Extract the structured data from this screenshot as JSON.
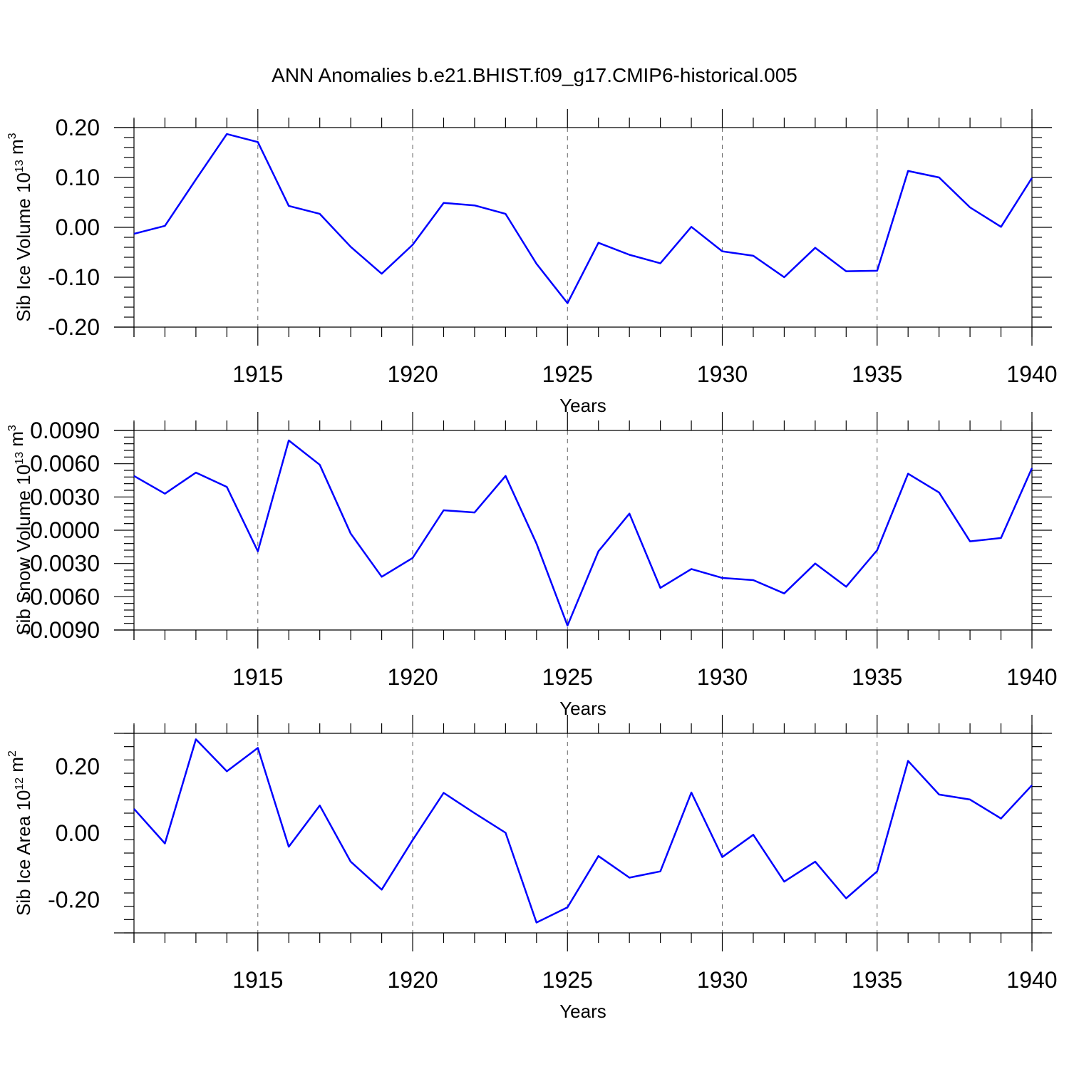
{
  "figure_title": "ANN Anomalies b.e21.BHIST.f09_g17.CMIP6-historical.005",
  "colors": {
    "line": "#0000ff",
    "axes": "#000000",
    "background": "#ffffff"
  },
  "chart_data": [
    {
      "type": "line",
      "name": "sib-ice-volume",
      "ylabel_main": "Sib Ice Volume 10",
      "ylabel_exp": "13",
      "ylabel_unit": " m",
      "ylabel_unit_exp": "3",
      "xlabel": "Years",
      "xlim": [
        1911,
        1940
      ],
      "ylim": [
        -0.2,
        0.2
      ],
      "ytick_values": [
        -0.2,
        -0.1,
        0.0,
        0.1,
        0.2
      ],
      "ytick_labels": [
        "-0.20",
        "-0.10",
        "0.00",
        "0.10",
        "0.20"
      ],
      "xtick_values": [
        1915,
        1920,
        1925,
        1930,
        1935,
        1940
      ],
      "xtick_labels": [
        "1915",
        "1920",
        "1925",
        "1930",
        "1935",
        "1940"
      ],
      "grid": "x-major dashed",
      "x": [
        1911,
        1912,
        1913,
        1914,
        1915,
        1916,
        1917,
        1918,
        1919,
        1920,
        1921,
        1922,
        1923,
        1924,
        1925,
        1926,
        1927,
        1928,
        1929,
        1930,
        1931,
        1932,
        1933,
        1934,
        1935,
        1936,
        1937,
        1938,
        1939,
        1940
      ],
      "values": [
        -0.013,
        0.003,
        0.096,
        0.187,
        0.171,
        0.043,
        0.027,
        -0.039,
        -0.093,
        -0.035,
        0.049,
        0.044,
        0.027,
        -0.073,
        -0.152,
        -0.031,
        -0.055,
        -0.072,
        0.001,
        -0.048,
        -0.057,
        -0.1,
        -0.041,
        -0.088,
        -0.087,
        0.113,
        0.1,
        0.04,
        0.001,
        0.099
      ]
    },
    {
      "type": "line",
      "name": "sib-snow-volume",
      "ylabel_main": "Sib Snow Volume 10",
      "ylabel_exp": "13",
      "ylabel_unit": " m",
      "ylabel_unit_exp": "3",
      "xlabel": "Years",
      "xlim": [
        1911,
        1940
      ],
      "ylim": [
        -0.009,
        0.009
      ],
      "ytick_values": [
        -0.009,
        -0.006,
        -0.003,
        0.0,
        0.003,
        0.006,
        0.009
      ],
      "ytick_labels": [
        "-0.0090",
        "-0.0060",
        "-0.0030",
        "0.0000",
        "0.0030",
        "0.0060",
        "0.0090"
      ],
      "xtick_values": [
        1915,
        1920,
        1925,
        1930,
        1935,
        1940
      ],
      "xtick_labels": [
        "1915",
        "1920",
        "1925",
        "1930",
        "1935",
        "1940"
      ],
      "grid": "x-major dashed",
      "x": [
        1911,
        1912,
        1913,
        1914,
        1915,
        1916,
        1917,
        1918,
        1919,
        1920,
        1921,
        1922,
        1923,
        1924,
        1925,
        1926,
        1927,
        1928,
        1929,
        1930,
        1931,
        1932,
        1933,
        1934,
        1935,
        1936,
        1937,
        1938,
        1939,
        1940
      ],
      "values": [
        0.0049,
        0.0033,
        0.0052,
        0.0039,
        -0.0019,
        0.0081,
        0.0059,
        -0.0003,
        -0.0042,
        -0.0025,
        0.0018,
        0.0016,
        0.0049,
        -0.0012,
        -0.0086,
        -0.0019,
        0.0015,
        -0.0052,
        -0.0035,
        -0.0043,
        -0.0045,
        -0.0057,
        -0.003,
        -0.0051,
        -0.0018,
        0.0051,
        0.0034,
        -0.001,
        -0.0007,
        0.0056
      ]
    },
    {
      "type": "line",
      "name": "sib-ice-area",
      "ylabel_main": "Sib Ice Area 10",
      "ylabel_exp": "12",
      "ylabel_unit": " m",
      "ylabel_unit_exp": "2",
      "xlabel": "Years",
      "xlim": [
        1911,
        1940
      ],
      "ylim": [
        -0.3,
        0.3
      ],
      "ytick_values": [
        -0.2,
        0.0,
        0.2
      ],
      "ytick_labels": [
        "-0.20",
        "0.00",
        "0.20"
      ],
      "xtick_values": [
        1915,
        1920,
        1925,
        1930,
        1935,
        1940
      ],
      "xtick_labels": [
        "1915",
        "1920",
        "1925",
        "1930",
        "1935",
        "1940"
      ],
      "grid": "x-major dashed",
      "x": [
        1911,
        1912,
        1913,
        1914,
        1915,
        1916,
        1917,
        1918,
        1919,
        1920,
        1921,
        1922,
        1923,
        1924,
        1925,
        1926,
        1927,
        1928,
        1929,
        1930,
        1931,
        1932,
        1933,
        1934,
        1935,
        1936,
        1937,
        1938,
        1939,
        1940
      ],
      "values": [
        0.073,
        -0.031,
        0.282,
        0.186,
        0.256,
        -0.041,
        0.083,
        -0.086,
        -0.17,
        -0.021,
        0.121,
        0.06,
        0.001,
        -0.269,
        -0.223,
        -0.069,
        -0.134,
        -0.115,
        0.122,
        -0.072,
        -0.005,
        -0.146,
        -0.086,
        -0.196,
        -0.115,
        0.217,
        0.116,
        0.101,
        0.044,
        0.144
      ]
    }
  ]
}
